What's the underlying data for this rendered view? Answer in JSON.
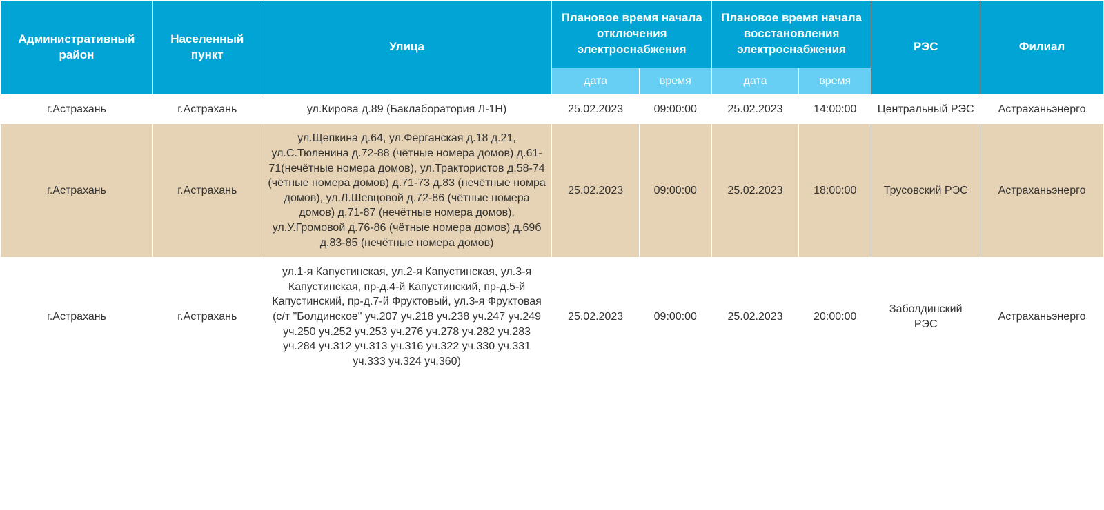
{
  "table": {
    "columns": {
      "district": "Административный район",
      "city": "Населенный пункт",
      "street": "Улица",
      "off": "Плановое время начала отключения электроснабжения",
      "on": "Плановое время начала восстановления электроснабжения",
      "res": "РЭС",
      "branch": "Филиал",
      "sub_date": "дата",
      "sub_time": "время"
    },
    "rows": [
      {
        "district": "г.Астрахань",
        "city": "г.Астрахань",
        "street": "ул.Кирова д.89 (Баклаборатория Л-1Н)",
        "off_date": "25.02.2023",
        "off_time": "09:00:00",
        "on_date": "25.02.2023",
        "on_time": "14:00:00",
        "res": "Центральный РЭС",
        "branch": "Астраханьэнерго"
      },
      {
        "district": "г.Астрахань",
        "city": "г.Астрахань",
        "street": "ул.Щепкина д.64, ул.Ферганская д.18 д.21, ул.С.Тюленина д.72-88 (чётные номера домов) д.61-71(нечётные номера домов), ул.Трактористов д.58-74 (чётные номера домов) д.71-73 д.83 (нечётные номра домов), ул.Л.Шевцовой д.72-86 (чётные номера домов) д.71-87 (нечётные номера домов), ул.У.Громовой д.76-86 (чётные номера домов) д.69б д.83-85 (нечётные номера домов)",
        "off_date": "25.02.2023",
        "off_time": "09:00:00",
        "on_date": "25.02.2023",
        "on_time": "18:00:00",
        "res": "Трусовский РЭС",
        "branch": "Астраханьэнерго"
      },
      {
        "district": "г.Астрахань",
        "city": "г.Астрахань",
        "street": "ул.1-я Капустинская, ул.2-я Капустинская, ул.3-я Капустинская, пр-д.4-й Капустинский, пр-д.5-й Капустинский, пр-д.7-й Фруктовый, ул.3-я Фруктовая (с/т \"Болдинское\" уч.207 уч.218 уч.238 уч.247 уч.249 уч.250 уч.252 уч.253 уч.276 уч.278 уч.282 уч.283 уч.284 уч.312 уч.313 уч.316 уч.322 уч.330 уч.331 уч.333 уч.324 уч.360)",
        "off_date": "25.02.2023",
        "off_time": "09:00:00",
        "on_date": "25.02.2023",
        "on_time": "20:00:00",
        "res": "Заболдинский РЭС",
        "branch": "Астраханьэнерго"
      }
    ],
    "colors": {
      "header_bg": "#00a5d6",
      "subheader_bg": "#67cff4",
      "row_white": "#ffffff",
      "row_beige": "#e6d3b5",
      "border": "#ffffff",
      "text": "#333333"
    }
  }
}
